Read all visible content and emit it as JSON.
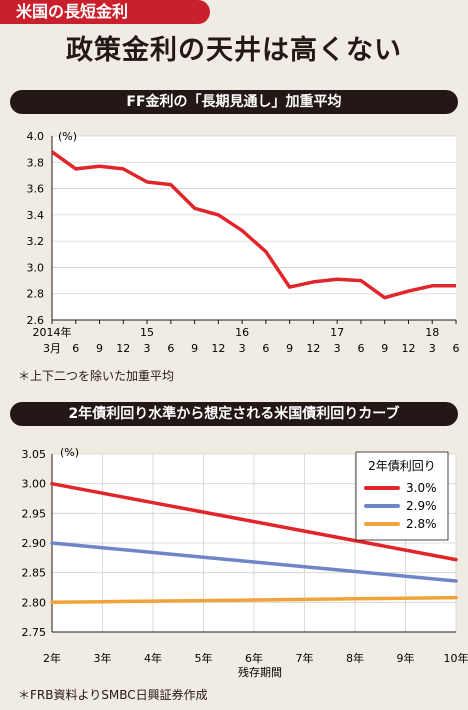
{
  "header": {
    "tag": "米国の長短金利",
    "headline": "政策金利の天井は高くない"
  },
  "chart_data": [
    {
      "type": "line",
      "title": "FF金利の「長期見通し」加重平均",
      "yunit": "(%)",
      "ylim": [
        2.6,
        4.0
      ],
      "yticks": [
        "4.0",
        "3.8",
        "3.6",
        "3.4",
        "3.2",
        "3.0",
        "2.8",
        "2.6"
      ],
      "x_month_labels": [
        "3月",
        "6",
        "9",
        "12",
        "3",
        "6",
        "9",
        "12",
        "3",
        "6",
        "9",
        "12",
        "3",
        "6",
        "9",
        "12",
        "3",
        "6"
      ],
      "x_year_labels": [
        {
          "label": "2014年",
          "index": 0
        },
        {
          "label": "15",
          "index": 4
        },
        {
          "label": "16",
          "index": 8
        },
        {
          "label": "17",
          "index": 12
        },
        {
          "label": "18",
          "index": 16
        }
      ],
      "series": [
        {
          "name": "",
          "color": "#e0252b",
          "values": [
            3.88,
            3.75,
            3.77,
            3.75,
            3.65,
            3.63,
            3.45,
            3.4,
            3.28,
            3.12,
            2.85,
            2.89,
            2.91,
            2.9,
            2.77,
            2.82,
            2.86,
            2.86
          ]
        }
      ],
      "note": "＊上下二つを除いた加重平均",
      "grid": true
    },
    {
      "type": "line",
      "title": "2年債利回り水準から想定される米国債利回りカーブ",
      "yunit": "(%)",
      "ylim": [
        2.75,
        3.05
      ],
      "yticks": [
        "3.05",
        "3.00",
        "2.95",
        "2.90",
        "2.85",
        "2.80",
        "2.75"
      ],
      "categories": [
        "2年",
        "3年",
        "4年",
        "5年",
        "6年",
        "7年",
        "8年",
        "9年",
        "10年"
      ],
      "xlabel": "残存期間",
      "legend_title": "2年債利回り",
      "legend_position": "top-right",
      "series": [
        {
          "name": "3.0%",
          "color": "#e0252b",
          "values": [
            3.0,
            2.984,
            2.968,
            2.952,
            2.936,
            2.92,
            2.904,
            2.888,
            2.872
          ]
        },
        {
          "name": "2.9%",
          "color": "#6e86c8",
          "values": [
            2.9,
            2.892,
            2.884,
            2.876,
            2.868,
            2.86,
            2.852,
            2.844,
            2.836
          ]
        },
        {
          "name": "2.8%",
          "color": "#f1a33b",
          "values": [
            2.8,
            2.801,
            2.802,
            2.803,
            2.804,
            2.805,
            2.806,
            2.807,
            2.808
          ]
        }
      ],
      "note": "＊FRB資料よりSMBC日興証券作成",
      "grid": true
    }
  ]
}
